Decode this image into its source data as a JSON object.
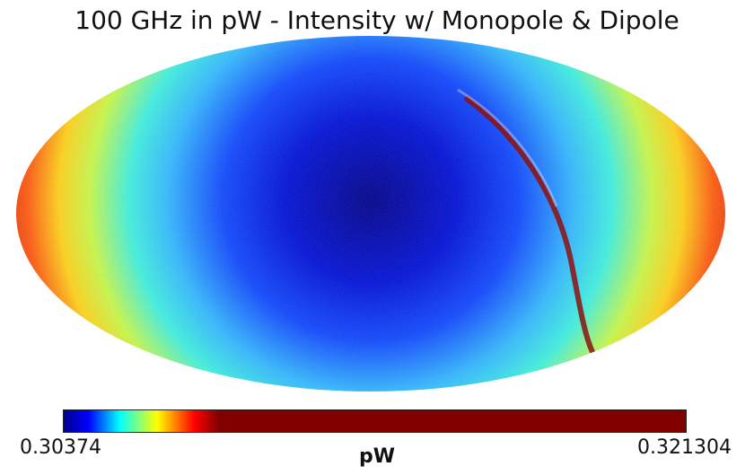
{
  "title": "100 GHz in pW - Intensity w/ Monopole & Dipole",
  "colorbar": {
    "min_label": "0.30374",
    "max_label": "0.321304",
    "unit_label": "pW",
    "colormap": [
      "#00008f",
      "#0000ff",
      "#00ffff",
      "#ffff00",
      "#ff0000",
      "#800000"
    ]
  }
}
